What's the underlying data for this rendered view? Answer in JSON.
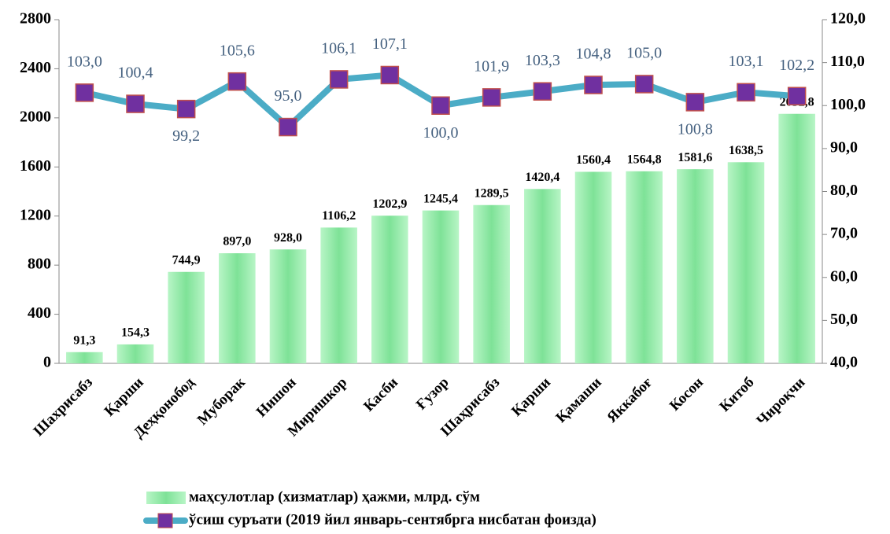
{
  "chart_data": {
    "type": "bar",
    "categories": [
      "Шахрисабз",
      "Қарши",
      "Деҳқонобод",
      "Муборак",
      "Нишон",
      "Миришкор",
      "Касби",
      "Ғузор",
      "Шаҳрисабз",
      "Қарши",
      "Қамаши",
      "Яккабоғ",
      "Косон",
      "Китоб",
      "Чироқчи"
    ],
    "series": [
      {
        "name": "маҳсулотлар (хизматлар) ҳажми, млрд. сўм",
        "type": "bar",
        "color": "#8ee8a4",
        "values": [
          91.3,
          154.3,
          744.9,
          897.0,
          928.0,
          1106.2,
          1202.9,
          1245.4,
          1289.5,
          1420.4,
          1560.4,
          1564.8,
          1581.6,
          1638.5,
          2032.8
        ],
        "value_labels": [
          "91,3",
          "154,3",
          "744,9",
          "897,0",
          "928,0",
          "1106,2",
          "1202,9",
          "1245,4",
          "1289,5",
          "1420,4",
          "1560,4",
          "1564,8",
          "1581,6",
          "1638,5",
          "2032,8"
        ]
      },
      {
        "name": "ўсиш суръати (2019 йил январь-сентябрга нисбатан фоизда)",
        "type": "line",
        "axis": "y2",
        "color": "#4bacc6",
        "marker_color": "#7030a0",
        "values": [
          103.0,
          100.4,
          99.2,
          105.6,
          95.0,
          106.1,
          107.1,
          100.0,
          101.9,
          103.3,
          104.8,
          105.0,
          100.8,
          103.1,
          102.2
        ],
        "value_labels": [
          "103,0",
          "100,4",
          "99,2",
          "105,6",
          "95,0",
          "106,1",
          "107,1",
          "100,0",
          "101,9",
          "103,3",
          "104,8",
          "105,0",
          "100,8",
          "103,1",
          "102,2"
        ]
      }
    ],
    "ylim": [
      0,
      2800
    ],
    "yticks": [
      0,
      400,
      800,
      1200,
      1600,
      2000,
      2400,
      2800
    ],
    "y2lim": [
      40,
      120
    ],
    "y2ticks": [
      {
        "value": 40,
        "label": "40,0"
      },
      {
        "value": 50,
        "label": "50,0"
      },
      {
        "value": 60,
        "label": "60,0"
      },
      {
        "value": 70,
        "label": "70,0"
      },
      {
        "value": 80,
        "label": "80,0"
      },
      {
        "value": 90,
        "label": "90,0"
      },
      {
        "value": 100,
        "label": "100,0"
      },
      {
        "value": 110,
        "label": "110,0"
      },
      {
        "value": 120,
        "label": "120,0"
      }
    ],
    "grid": false,
    "legend": "bottom"
  }
}
